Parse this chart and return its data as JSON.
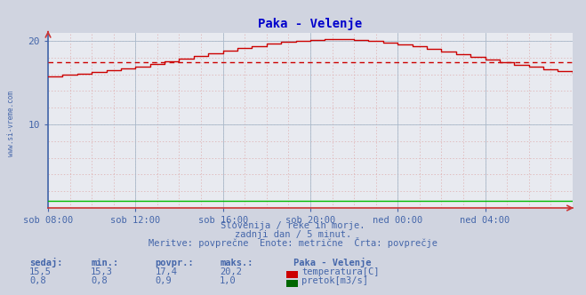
{
  "title": "Paka - Velenje",
  "title_color": "#0000cc",
  "bg_color": "#d0d4e0",
  "plot_bg_color": "#e8eaf0",
  "xlim": [
    0,
    288
  ],
  "ylim": [
    0,
    21
  ],
  "yticks_major": [
    10,
    20
  ],
  "xtick_labels": [
    "sob 08:00",
    "sob 12:00",
    "sob 16:00",
    "sob 20:00",
    "ned 00:00",
    "ned 04:00"
  ],
  "xtick_positions": [
    0,
    48,
    96,
    144,
    192,
    240
  ],
  "avg_line_value": 17.4,
  "temp_line_color": "#cc0000",
  "flow_line_color": "#00bb00",
  "axis_color": "#4466aa",
  "watermark": "www.si-vreme.com",
  "watermark_color": "#4466aa",
  "footer_line1": "Slovenija / reke in morje.",
  "footer_line2": "zadnji dan / 5 minut.",
  "footer_line3": "Meritve: povprečne  Enote: metrične  Črta: povprečje",
  "footer_color": "#4466aa",
  "table_header": [
    "sedaj:",
    "min.:",
    "povpr.:",
    "maks.:"
  ],
  "table_bold_header": "Paka - Velenje",
  "table_temp": [
    "15,5",
    "15,3",
    "17,4",
    "20,2"
  ],
  "table_flow": [
    "0,8",
    "0,8",
    "0,9",
    "1,0"
  ],
  "table_color": "#4466aa",
  "label_temp": "temperatura[C]",
  "label_flow": "pretok[m3/s]",
  "temp_avg": 17.4,
  "flow_value": 0.9
}
